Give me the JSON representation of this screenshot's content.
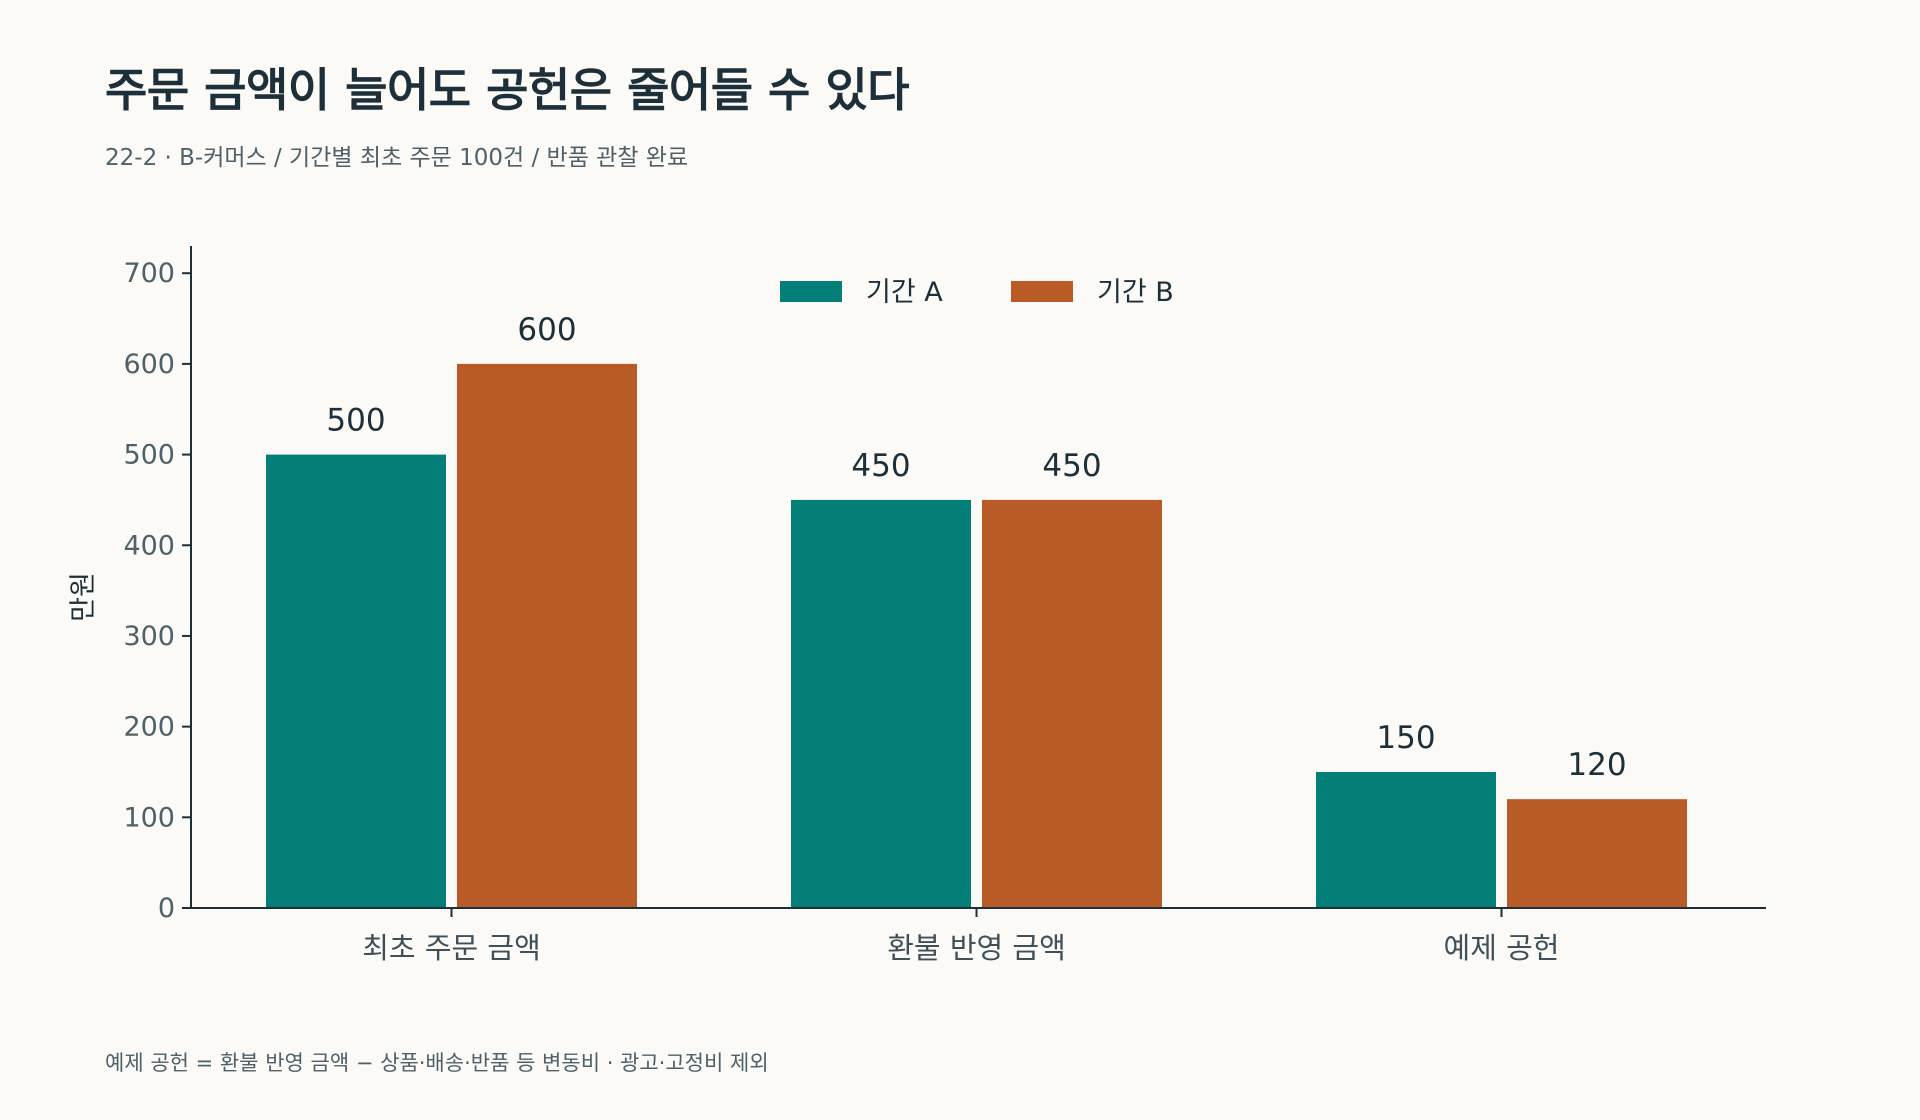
{
  "title": "주문 금액이 늘어도 공헌은 줄어들 수 있다",
  "subtitle": "22-2 · B-커머스 / 기간별 최초 주문 100건 / 반품 관찰 완료",
  "footnote": "예제 공헌 = 환불 반영 금액 − 상품·배송·반품 등 변동비 · 광고·고정비 제외",
  "chart_data": {
    "type": "bar",
    "categories": [
      "최초 주문 금액",
      "환불 반영 금액",
      "예제 공헌"
    ],
    "series": [
      {
        "name": "기간 A",
        "values": [
          500,
          450,
          150
        ],
        "color": "#037f78"
      },
      {
        "name": "기간 B",
        "values": [
          600,
          450,
          120
        ],
        "color": "#b85b27"
      }
    ],
    "ylabel": "만원",
    "ylim": [
      0,
      730
    ],
    "yticks": [
      0,
      100,
      200,
      300,
      400,
      500,
      600,
      700
    ],
    "grid": false,
    "legend_position": "top-center"
  }
}
